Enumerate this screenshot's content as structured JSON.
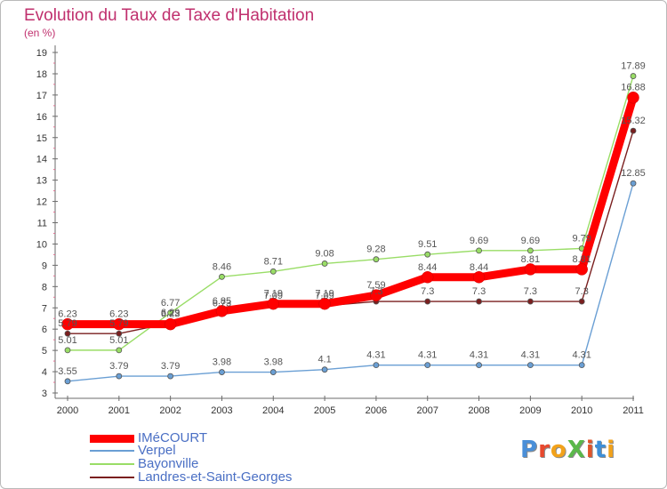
{
  "title": "Evolution du Taux de Taxe d'Habitation",
  "unit_label": "(en %)",
  "brand": {
    "text": "ProXiti"
  },
  "chart_data": {
    "type": "line",
    "title": "Evolution du Taux de Taxe d'Habitation",
    "ylabel": "(en %)",
    "xlabel": "",
    "x": [
      "2000",
      "2001",
      "2002",
      "2003",
      "2004",
      "2005",
      "2006",
      "2007",
      "2008",
      "2009",
      "2010",
      "2011"
    ],
    "ylim": [
      3,
      19
    ],
    "yticks": [
      "3",
      "4",
      "5",
      "6",
      "7",
      "8",
      "9",
      "10",
      "11",
      "12",
      "13",
      "14",
      "15",
      "16",
      "17",
      "18",
      "19"
    ],
    "grid": false,
    "legend_position": "bottom-left",
    "series": [
      {
        "name": "IMéCOURT",
        "color": "#ff0000",
        "values": [
          6.23,
          6.23,
          6.23,
          6.85,
          7.19,
          7.19,
          7.59,
          8.44,
          8.44,
          8.81,
          8.81,
          16.88
        ],
        "labels": [
          "6.23",
          "6.23",
          "6.23",
          "6.85",
          "7.19",
          "7.19",
          "7.59",
          "8.44",
          "8.44",
          "8.81",
          "8.81",
          "16.88"
        ]
      },
      {
        "name": "Verpel",
        "color": "#6a9fd4",
        "values": [
          3.55,
          3.79,
          3.79,
          3.98,
          3.98,
          4.1,
          4.31,
          4.31,
          4.31,
          4.31,
          4.31,
          12.85
        ],
        "labels": [
          "3.55",
          "3.79",
          "3.79",
          "3.98",
          "3.98",
          "4.1",
          "4.31",
          "4.31",
          "4.31",
          "4.31",
          "4.31",
          "12.85"
        ]
      },
      {
        "name": "Bayonville",
        "color": "#99dd66",
        "values": [
          5.01,
          5.01,
          6.77,
          8.46,
          8.71,
          9.08,
          9.28,
          9.51,
          9.69,
          9.69,
          9.79,
          17.89
        ],
        "labels": [
          "5.01",
          "5.01",
          "6.77",
          "8.46",
          "8.71",
          "9.08",
          "9.28",
          "9.51",
          "9.69",
          "9.69",
          "9.79",
          "17.89"
        ]
      },
      {
        "name": "Landres-et-Saint-Georges",
        "color": "#7a1f1f",
        "values": [
          5.79,
          5.79,
          6.29,
          6.73,
          7.09,
          7.09,
          7.3,
          7.3,
          7.3,
          7.3,
          7.3,
          15.32
        ],
        "labels": [
          "5.79",
          "5.79",
          "6.29",
          "6.73",
          "7.09",
          "7.09",
          "7.3",
          "7.3",
          "7.3",
          "7.3",
          "7.3",
          "15.32"
        ]
      }
    ]
  }
}
